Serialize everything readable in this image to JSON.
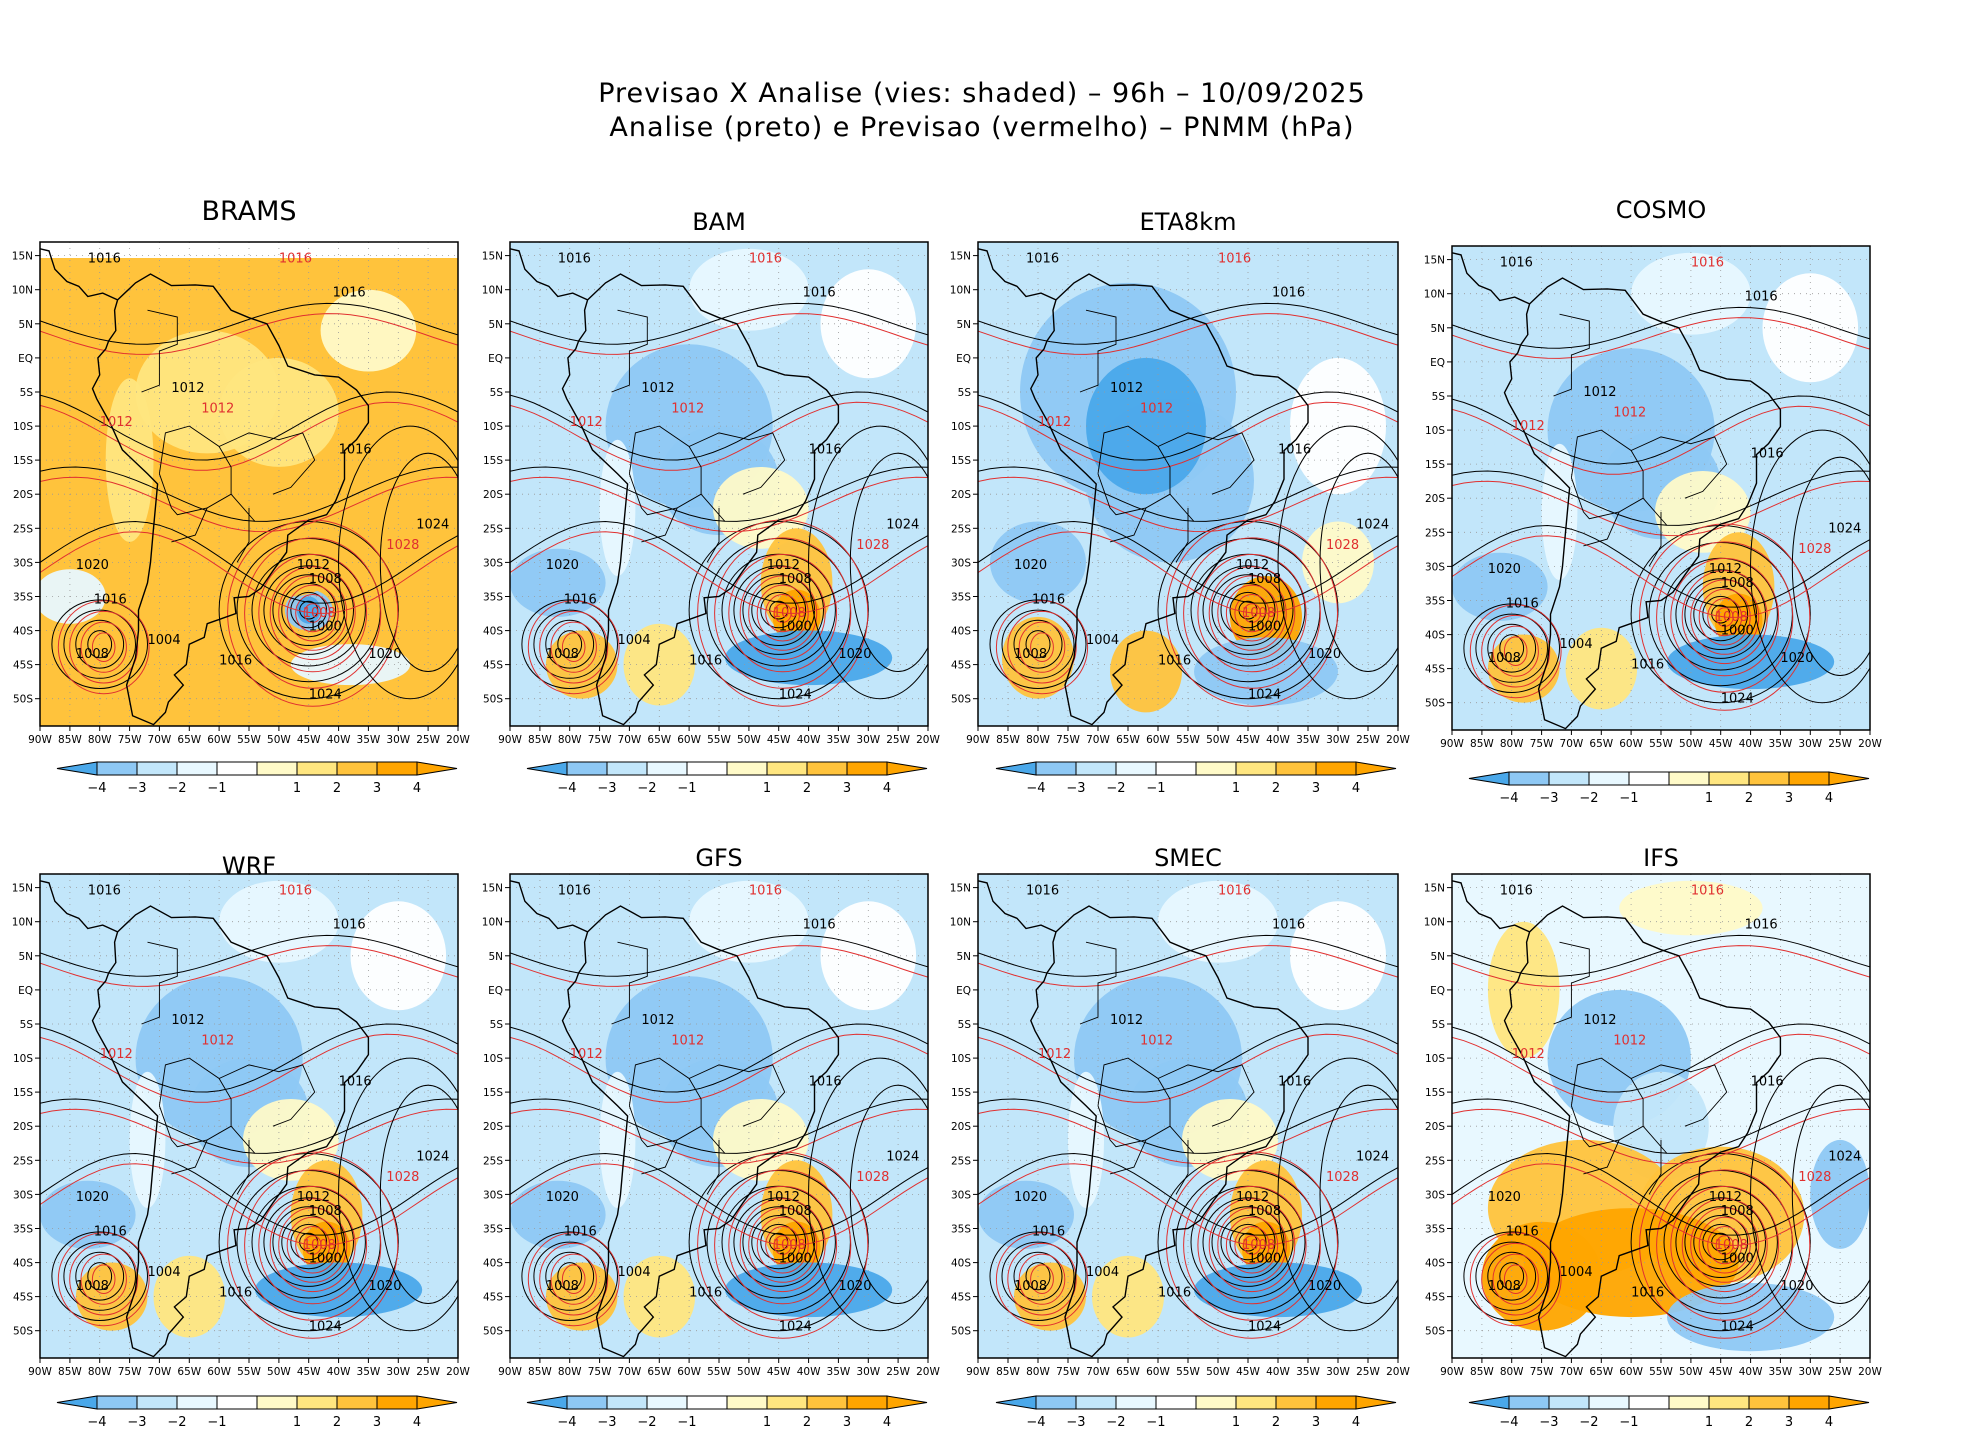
{
  "title": {
    "line1": "Previsao X Analise (vies: shaded) – 96h – 10/09/2025",
    "line2": "Analise (preto) e Previsao (vermelho) – PNMM (hPa)"
  },
  "colors": {
    "neg4": "#4aa8ea",
    "neg3": "#8ec8f4",
    "neg2": "#c2e6fa",
    "neg1": "#e8f8ff",
    "zero": "#ffffff",
    "pos1": "#fffac8",
    "pos2": "#ffe680",
    "pos3": "#ffc33c",
    "pos4": "#ffa500",
    "analysis": "#000000",
    "forecast": "#e03030"
  },
  "axes": {
    "lon_labels": [
      "90W",
      "85W",
      "80W",
      "75W",
      "70W",
      "65W",
      "60W",
      "55W",
      "50W",
      "45W",
      "40W",
      "35W",
      "30W",
      "25W",
      "20W"
    ],
    "lat_labels": [
      "15N",
      "10N",
      "5N",
      "EQ",
      "5S",
      "10S",
      "15S",
      "20S",
      "25S",
      "30S",
      "35S",
      "40S",
      "45S",
      "50S"
    ]
  },
  "colorbar": {
    "labels": [
      "−4",
      "−3",
      "−2",
      "−1",
      "1",
      "2",
      "3",
      "4"
    ]
  },
  "contour_labels": {
    "values": [
      "1000",
      "1004",
      "1008",
      "1012",
      "1016",
      "1020",
      "1024",
      "1028"
    ]
  },
  "panels": [
    {
      "name": "BRAMS",
      "bias": "warm"
    },
    {
      "name": "BAM",
      "bias": "mixed"
    },
    {
      "name": "ETA8km",
      "bias": "cold"
    },
    {
      "name": "COSMO",
      "bias": "mixed"
    },
    {
      "name": "WRF",
      "bias": "mixed"
    },
    {
      "name": "GFS",
      "bias": "mixed"
    },
    {
      "name": "SMEC",
      "bias": "mixed"
    },
    {
      "name": "IFS",
      "bias": "warm-south"
    }
  ]
}
